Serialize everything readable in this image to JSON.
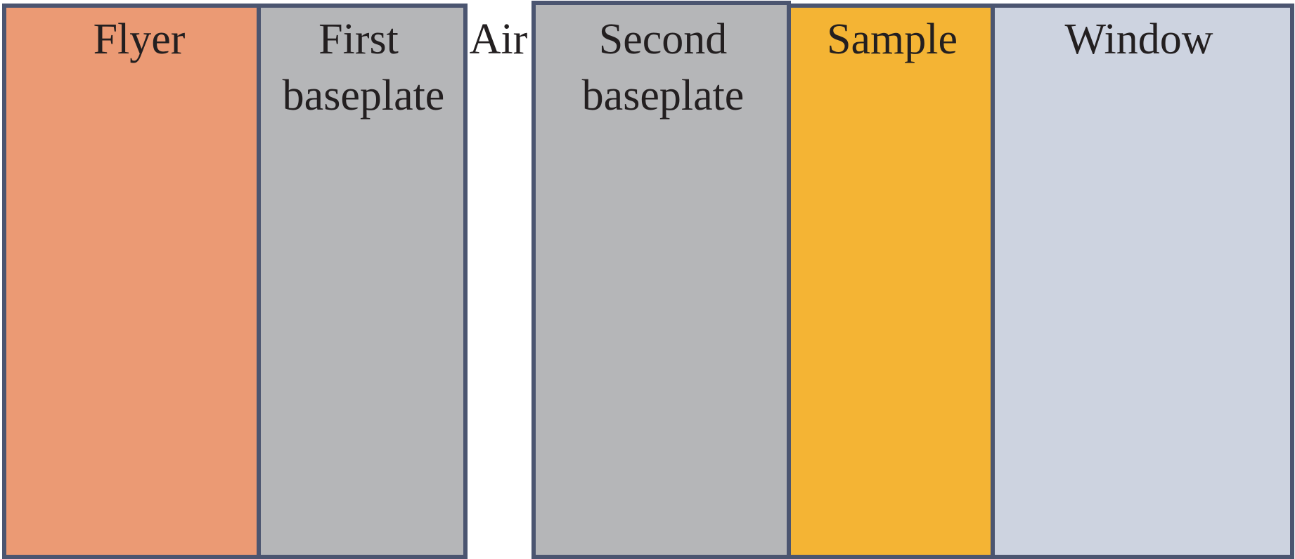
{
  "nodes": [
    {
      "label": [
        "Flyer"
      ]
    },
    {
      "label": [
        "First",
        "baseplate"
      ]
    },
    {
      "label": [
        "Air"
      ]
    },
    {
      "label": [
        "Second",
        "baseplate"
      ]
    },
    {
      "label": [
        "Sample"
      ]
    },
    {
      "label": [
        "Window"
      ]
    }
  ]
}
